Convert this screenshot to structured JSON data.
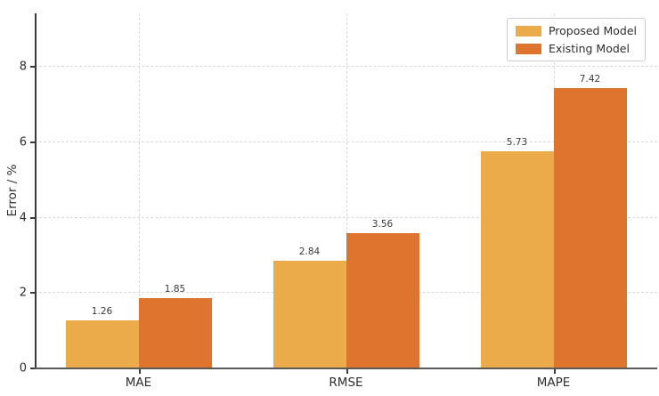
{
  "chart_data": {
    "type": "bar",
    "title": "",
    "categories": [
      "MAE",
      "RMSE",
      "MAPE"
    ],
    "series": [
      {
        "name": "Proposed Model",
        "color": "#ECAB4B",
        "values": [
          1.26,
          2.84,
          5.73
        ]
      },
      {
        "name": "Existing Model",
        "color": "#DF742E",
        "values": [
          1.85,
          3.56,
          7.42
        ]
      }
    ],
    "value_labels": [
      "1.26",
      "1.85",
      "2.84",
      "3.56",
      "5.73",
      "7.42"
    ],
    "xlabel": "",
    "ylabel": "Error / %",
    "yticks": [
      0,
      2,
      4,
      6,
      8
    ],
    "ylim": [
      0,
      9.4
    ],
    "grid": "dashed, horizontal at yticks and vertical at category centers",
    "legend_position": "upper right",
    "colors": {
      "grid": "#d9d9d9",
      "spine": "#3a3a3a",
      "text": "#2e2e2e",
      "background": "#ffffff"
    }
  }
}
